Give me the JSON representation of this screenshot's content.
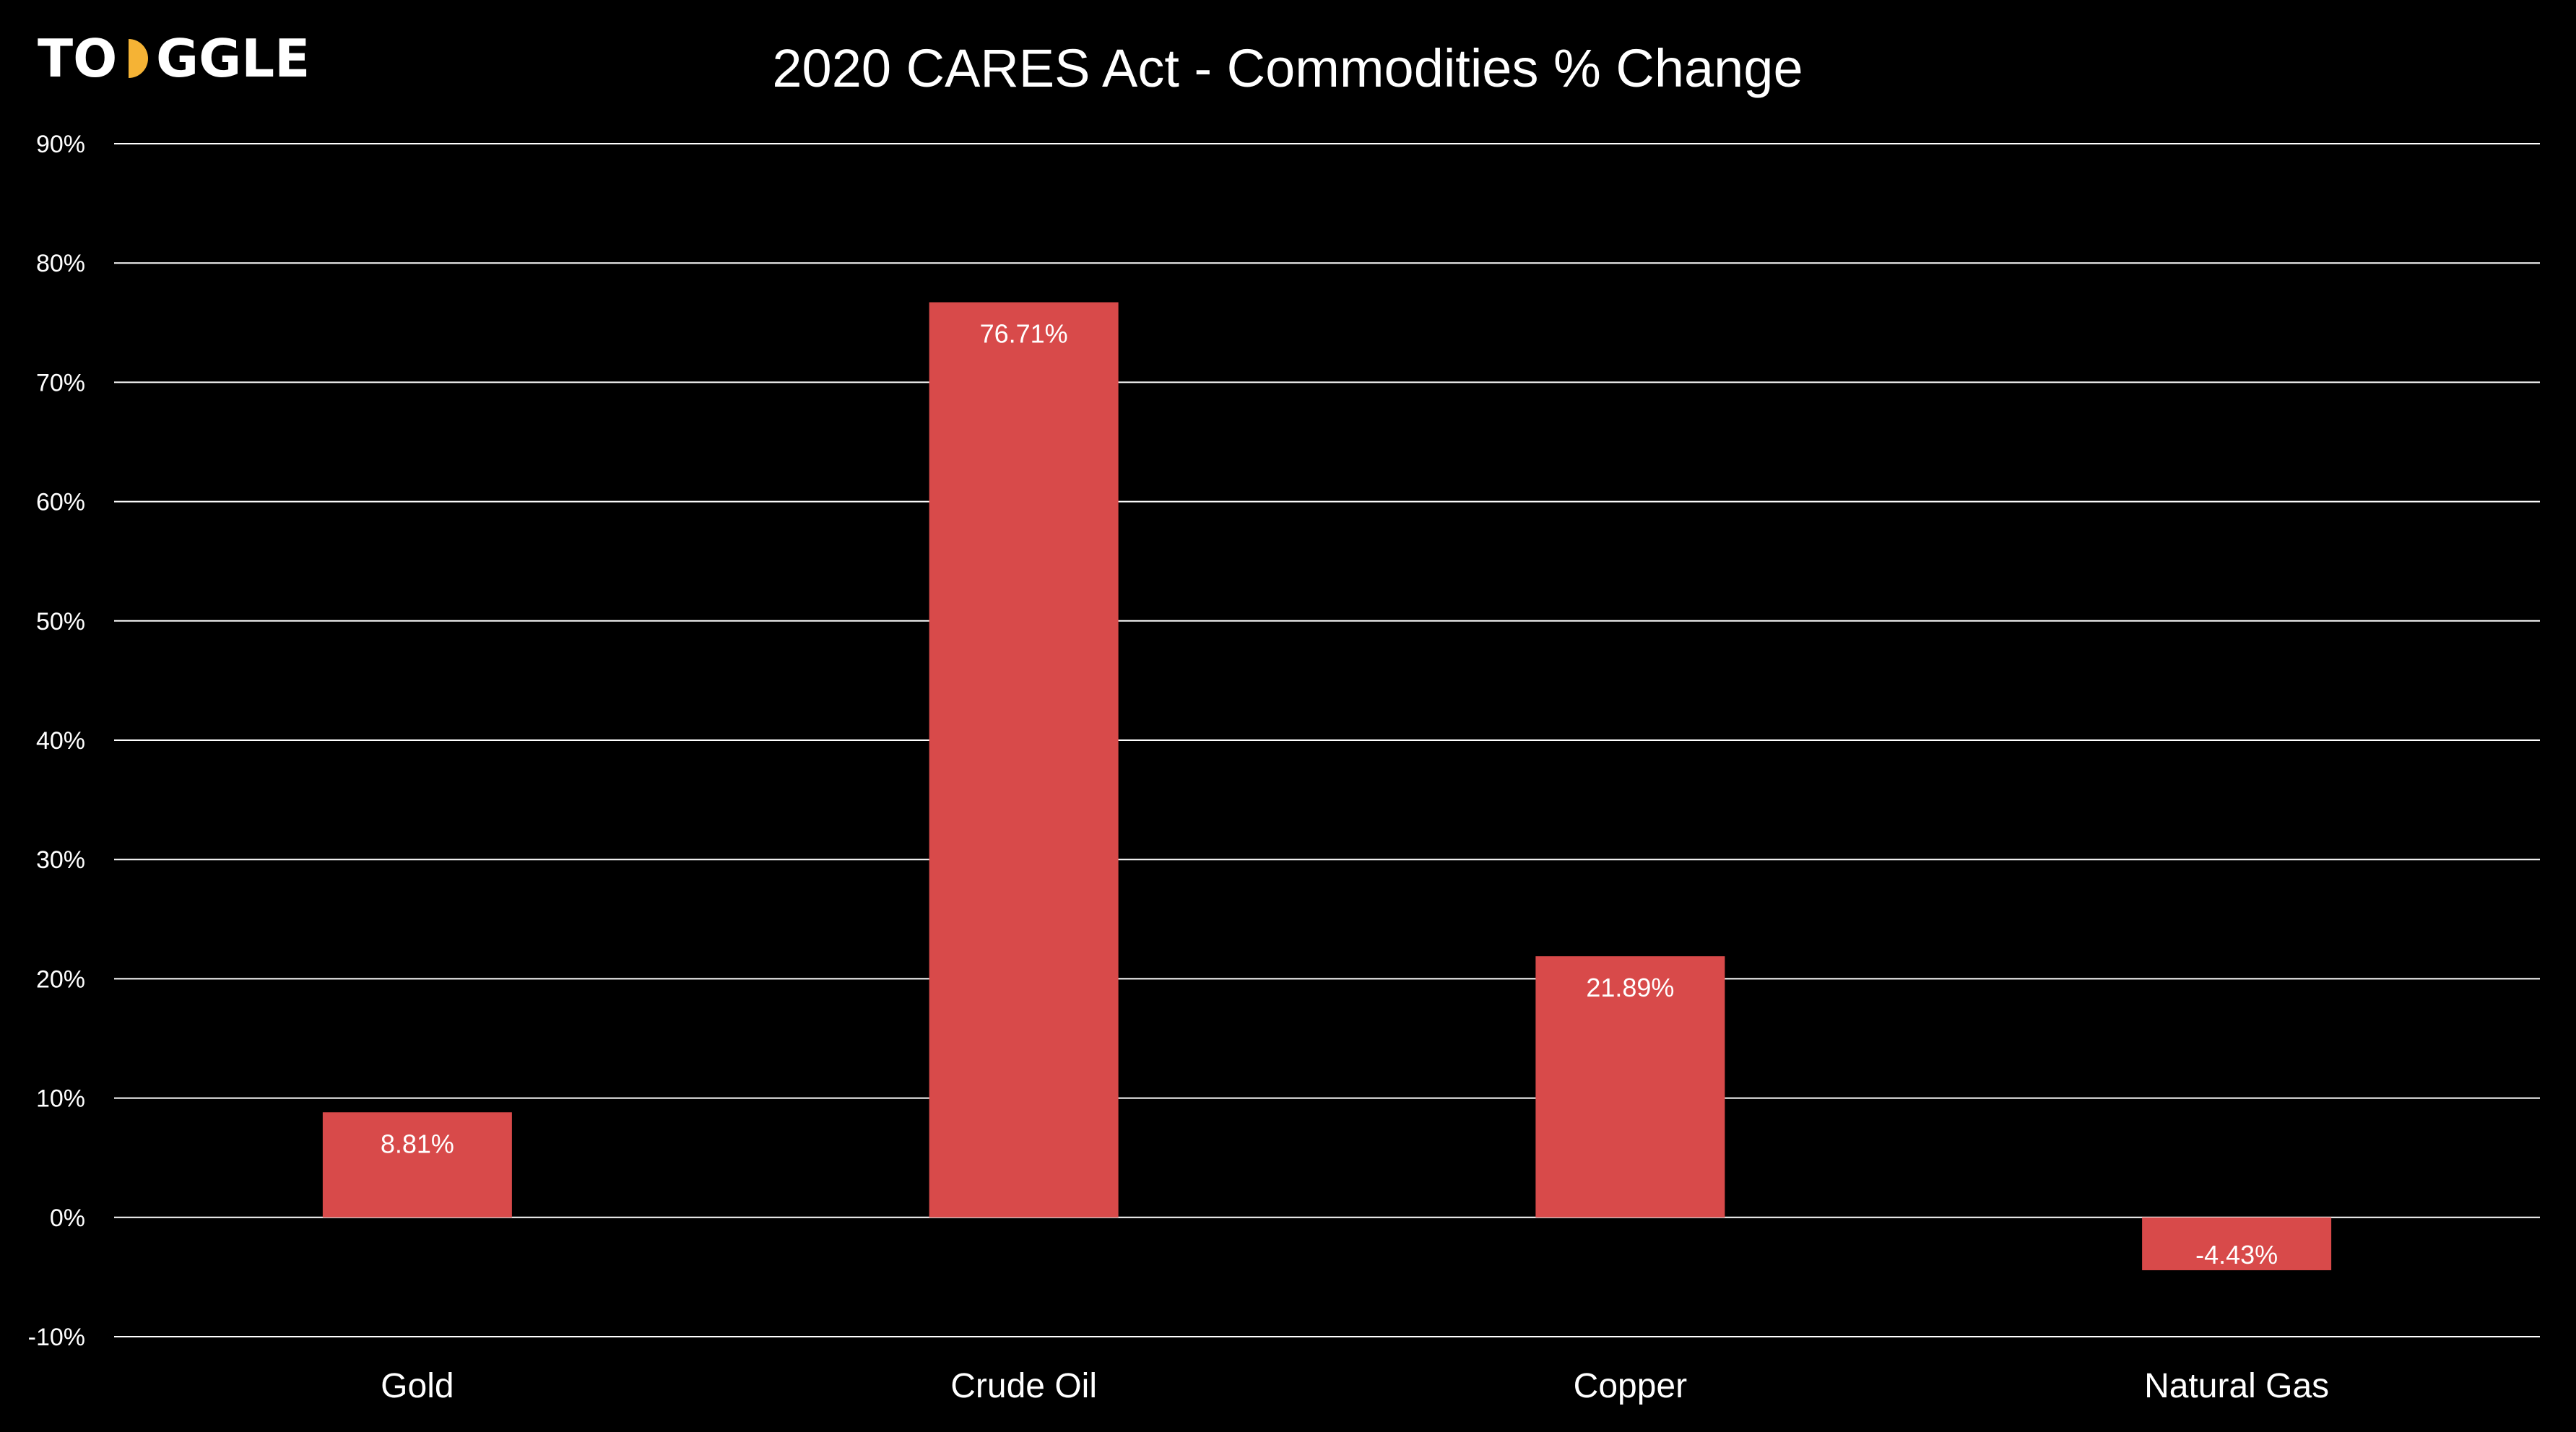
{
  "logo": {
    "text_before": "TO",
    "text_after": "GGLE",
    "accent_color": "#f5b335"
  },
  "chart_data": {
    "type": "bar",
    "title": "2020 CARES Act - Commodities % Change",
    "xlabel": "",
    "ylabel": "",
    "categories": [
      "Gold",
      "Crude Oil",
      "Copper",
      "Natural Gas"
    ],
    "values": [
      8.81,
      76.71,
      21.89,
      -4.43
    ],
    "data_labels": [
      "8.81%",
      "76.71%",
      "21.89%",
      "-4.43%"
    ],
    "ylim": [
      -10,
      90
    ],
    "y_ticks": [
      -10,
      0,
      10,
      20,
      30,
      40,
      50,
      60,
      70,
      80,
      90
    ],
    "y_tick_labels": [
      "-10%",
      "0%",
      "10%",
      "20%",
      "30%",
      "40%",
      "50%",
      "60%",
      "70%",
      "80%",
      "90%"
    ],
    "grid": true,
    "legend": "none",
    "bar_color": "#d84a4a",
    "background_color": "#000000",
    "grid_color": "#ffffff"
  }
}
